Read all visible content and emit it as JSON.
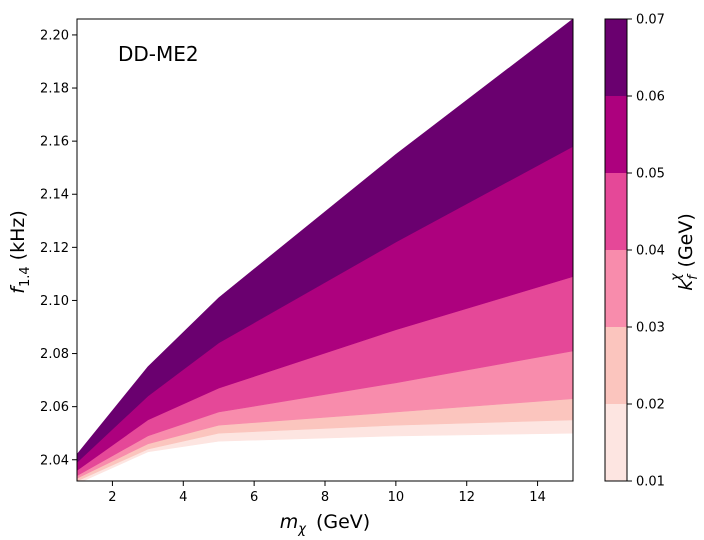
{
  "chart_data": {
    "type": "filled-contour",
    "annotation": "DD-ME2",
    "xlabel_sym": "m",
    "xlabel_sub": "χ",
    "xlabel_unit": "(GeV)",
    "ylabel_sym": "f",
    "ylabel_sub": "1.4",
    "ylabel_unit": "(kHz)",
    "colorbar_label_sym": "k",
    "colorbar_label_sub": "f",
    "colorbar_label_sup": "χ",
    "colorbar_label_unit": "(GeV)",
    "xlim": [
      1,
      15
    ],
    "ylim": [
      2.032,
      2.206
    ],
    "x_ticks": [
      2,
      4,
      6,
      8,
      10,
      12,
      14
    ],
    "y_ticks": [
      2.04,
      2.06,
      2.08,
      2.1,
      2.12,
      2.14,
      2.16,
      2.18,
      2.2
    ],
    "y_tick_labels": [
      "2.04",
      "2.06",
      "2.08",
      "2.10",
      "2.12",
      "2.14",
      "2.16",
      "2.18",
      "2.20"
    ],
    "levels": [
      0.01,
      0.02,
      0.03,
      0.04,
      0.05,
      0.06,
      0.07
    ],
    "level_labels": [
      "0.01",
      "0.02",
      "0.03",
      "0.04",
      "0.05",
      "0.06",
      "0.07"
    ],
    "colors": [
      "#fde5e1",
      "#fbc5be",
      "#f88cac",
      "#e54898",
      "#ad017e",
      "#6a006f"
    ],
    "x": [
      1,
      3,
      5,
      10,
      15
    ],
    "boundaries": [
      {
        "k": 0.01,
        "y": [
          2.031,
          2.043,
          2.047,
          2.049,
          2.05
        ]
      },
      {
        "k": 0.02,
        "y": [
          2.032,
          2.044,
          2.05,
          2.053,
          2.055
        ]
      },
      {
        "k": 0.03,
        "y": [
          2.033,
          2.046,
          2.053,
          2.058,
          2.063
        ]
      },
      {
        "k": 0.04,
        "y": [
          2.034,
          2.049,
          2.058,
          2.069,
          2.081
        ]
      },
      {
        "k": 0.05,
        "y": [
          2.036,
          2.055,
          2.067,
          2.089,
          2.109
        ]
      },
      {
        "k": 0.06,
        "y": [
          2.039,
          2.064,
          2.084,
          2.122,
          2.158
        ]
      },
      {
        "k": 0.07,
        "y": [
          2.042,
          2.075,
          2.101,
          2.155,
          2.206
        ]
      }
    ]
  }
}
